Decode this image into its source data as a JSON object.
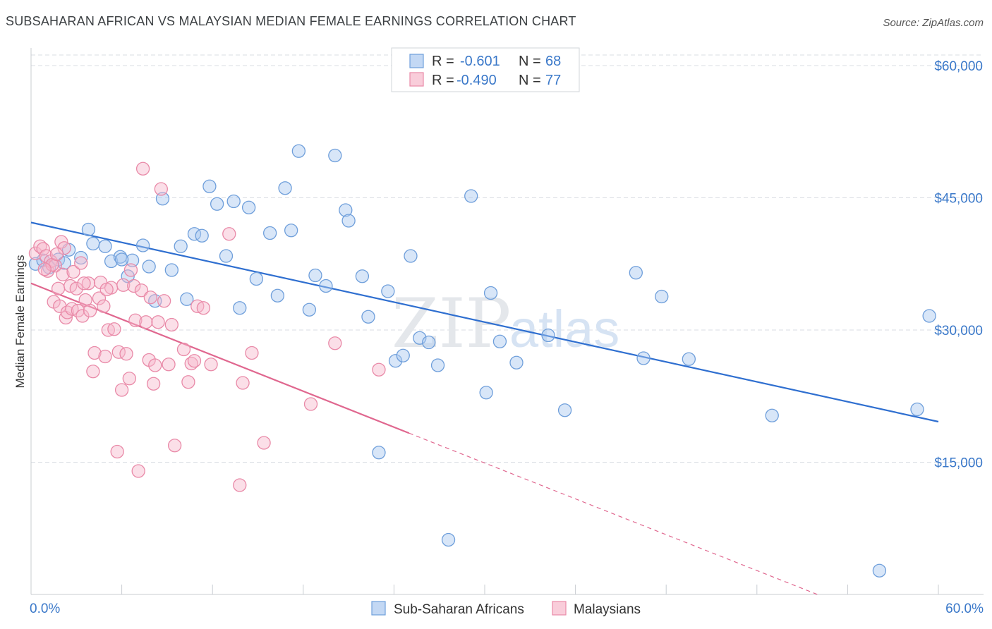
{
  "title": "SUBSAHARAN AFRICAN VS MALAYSIAN MEDIAN FEMALE EARNINGS CORRELATION CHART",
  "source": "Source: ZipAtlas.com",
  "colors": {
    "blue_fill": "#a9c8f0",
    "blue_stroke": "#6f9fdb",
    "blue_line": "#2f6fd0",
    "pink_fill": "#f6b8cb",
    "pink_stroke": "#e98aa8",
    "pink_line": "#e0678f",
    "axis_label": "#3a78c9",
    "grid": "#d9dde3"
  },
  "legend": {
    "rows": [
      {
        "r_label": "R =",
        "r_value": "-0.601",
        "n_label": "N =",
        "n_value": "68",
        "series": "blue"
      },
      {
        "r_label": "R =",
        "r_value": "-0.490",
        "n_label": "N =",
        "n_value": "77",
        "series": "pink"
      }
    ]
  },
  "chart_data": {
    "type": "scatter",
    "title": "SUBSAHARAN AFRICAN VS MALAYSIAN MEDIAN FEMALE EARNINGS CORRELATION CHART",
    "xlabel": "",
    "ylabel": "Median Female Earnings",
    "xlim": [
      0,
      60
    ],
    "ylim": [
      0,
      62000
    ],
    "x_tick_labels": [
      "0.0%",
      "60.0%"
    ],
    "y_ticks": [
      15000,
      30000,
      45000,
      60000
    ],
    "y_tick_labels": [
      "$15,000",
      "$30,000",
      "$45,000",
      "$60,000"
    ],
    "grid": true,
    "legend_position": "bottom",
    "watermark": "ZIPatlas",
    "series": [
      {
        "name": "Sub-Saharan Africans",
        "color": "blue",
        "r": -0.601,
        "n": 68,
        "trend": {
          "x0": 0,
          "y0": 42200,
          "x1": 60,
          "y1": 19600
        },
        "points": [
          [
            0.3,
            37500
          ],
          [
            0.8,
            37900
          ],
          [
            1.2,
            37100
          ],
          [
            1.8,
            38000
          ],
          [
            2.5,
            39100
          ],
          [
            3.3,
            38200
          ],
          [
            3.8,
            41400
          ],
          [
            4.1,
            39800
          ],
          [
            4.9,
            39500
          ],
          [
            5.3,
            37800
          ],
          [
            5.9,
            38300
          ],
          [
            6.4,
            36100
          ],
          [
            6.7,
            37900
          ],
          [
            7.4,
            39600
          ],
          [
            7.8,
            37200
          ],
          [
            8.2,
            33300
          ],
          [
            8.7,
            44900
          ],
          [
            9.3,
            36800
          ],
          [
            9.9,
            39500
          ],
          [
            10.3,
            33500
          ],
          [
            10.8,
            40900
          ],
          [
            11.3,
            40700
          ],
          [
            11.8,
            46300
          ],
          [
            12.3,
            44300
          ],
          [
            12.9,
            38400
          ],
          [
            13.4,
            44600
          ],
          [
            13.8,
            32500
          ],
          [
            14.4,
            43900
          ],
          [
            14.9,
            35800
          ],
          [
            15.8,
            41000
          ],
          [
            16.3,
            33900
          ],
          [
            16.8,
            46100
          ],
          [
            17.2,
            41300
          ],
          [
            17.7,
            50300
          ],
          [
            18.4,
            32300
          ],
          [
            18.8,
            36200
          ],
          [
            19.5,
            35000
          ],
          [
            20.1,
            49800
          ],
          [
            20.8,
            43600
          ],
          [
            21.0,
            42400
          ],
          [
            21.9,
            36100
          ],
          [
            22.3,
            31500
          ],
          [
            23.0,
            16100
          ],
          [
            23.6,
            34400
          ],
          [
            24.1,
            26500
          ],
          [
            24.6,
            27100
          ],
          [
            25.1,
            38400
          ],
          [
            25.7,
            29100
          ],
          [
            26.3,
            28600
          ],
          [
            26.9,
            26000
          ],
          [
            27.6,
            6200
          ],
          [
            29.1,
            45200
          ],
          [
            30.1,
            22900
          ],
          [
            30.4,
            34200
          ],
          [
            31.0,
            28700
          ],
          [
            32.1,
            26300
          ],
          [
            34.2,
            29400
          ],
          [
            35.3,
            20900
          ],
          [
            40.0,
            36500
          ],
          [
            40.5,
            26800
          ],
          [
            41.7,
            33800
          ],
          [
            43.5,
            26700
          ],
          [
            49.0,
            20300
          ],
          [
            56.1,
            2700
          ],
          [
            58.6,
            21000
          ],
          [
            59.4,
            31600
          ],
          [
            2.2,
            37600
          ],
          [
            6.0,
            38000
          ]
        ]
      },
      {
        "name": "Malaysians",
        "color": "pink",
        "r": -0.49,
        "n": 77,
        "trend": {
          "x0": 0,
          "y0": 35300,
          "x1": 25,
          "y1": 18300,
          "x1_dashed": 52,
          "y1_dashed": 0
        },
        "points": [
          [
            0.3,
            38700
          ],
          [
            0.6,
            39500
          ],
          [
            0.8,
            39200
          ],
          [
            1.0,
            38400
          ],
          [
            1.1,
            36700
          ],
          [
            1.3,
            37800
          ],
          [
            1.5,
            33200
          ],
          [
            1.6,
            37300
          ],
          [
            1.8,
            34700
          ],
          [
            1.9,
            32700
          ],
          [
            2.0,
            40000
          ],
          [
            2.1,
            36300
          ],
          [
            2.3,
            31400
          ],
          [
            2.4,
            32000
          ],
          [
            2.6,
            35000
          ],
          [
            2.7,
            32400
          ],
          [
            2.8,
            36600
          ],
          [
            3.0,
            34700
          ],
          [
            3.1,
            32200
          ],
          [
            3.3,
            37600
          ],
          [
            3.4,
            31600
          ],
          [
            3.6,
            33400
          ],
          [
            3.8,
            35300
          ],
          [
            3.9,
            32200
          ],
          [
            4.1,
            25300
          ],
          [
            4.2,
            27400
          ],
          [
            4.5,
            33600
          ],
          [
            4.6,
            35400
          ],
          [
            4.8,
            32700
          ],
          [
            4.9,
            27000
          ],
          [
            5.1,
            30000
          ],
          [
            5.3,
            34800
          ],
          [
            5.5,
            30100
          ],
          [
            5.7,
            16200
          ],
          [
            5.8,
            27500
          ],
          [
            6.0,
            23200
          ],
          [
            6.1,
            35100
          ],
          [
            6.3,
            27300
          ],
          [
            6.5,
            24500
          ],
          [
            6.6,
            36800
          ],
          [
            6.8,
            35000
          ],
          [
            6.9,
            31100
          ],
          [
            7.1,
            14000
          ],
          [
            7.3,
            34500
          ],
          [
            7.4,
            48300
          ],
          [
            7.6,
            30900
          ],
          [
            7.8,
            26600
          ],
          [
            7.9,
            33700
          ],
          [
            8.1,
            23900
          ],
          [
            8.2,
            26000
          ],
          [
            8.4,
            30900
          ],
          [
            8.6,
            46000
          ],
          [
            8.8,
            33300
          ],
          [
            9.1,
            26100
          ],
          [
            9.3,
            30600
          ],
          [
            9.5,
            16900
          ],
          [
            10.1,
            27800
          ],
          [
            10.4,
            24100
          ],
          [
            10.6,
            26200
          ],
          [
            10.8,
            26500
          ],
          [
            11.0,
            32700
          ],
          [
            11.4,
            32500
          ],
          [
            11.9,
            26100
          ],
          [
            13.1,
            40900
          ],
          [
            13.8,
            12400
          ],
          [
            14.0,
            24000
          ],
          [
            14.6,
            27400
          ],
          [
            15.4,
            17200
          ],
          [
            18.5,
            21600
          ],
          [
            20.1,
            28500
          ],
          [
            23.0,
            25500
          ],
          [
            1.4,
            37400
          ],
          [
            2.2,
            39300
          ],
          [
            0.9,
            36900
          ],
          [
            3.5,
            35300
          ],
          [
            5.0,
            34600
          ],
          [
            1.7,
            38600
          ]
        ]
      }
    ]
  },
  "bottom_legend": [
    {
      "label": "Sub-Saharan Africans",
      "series": "blue"
    },
    {
      "label": "Malaysians",
      "series": "pink"
    }
  ]
}
